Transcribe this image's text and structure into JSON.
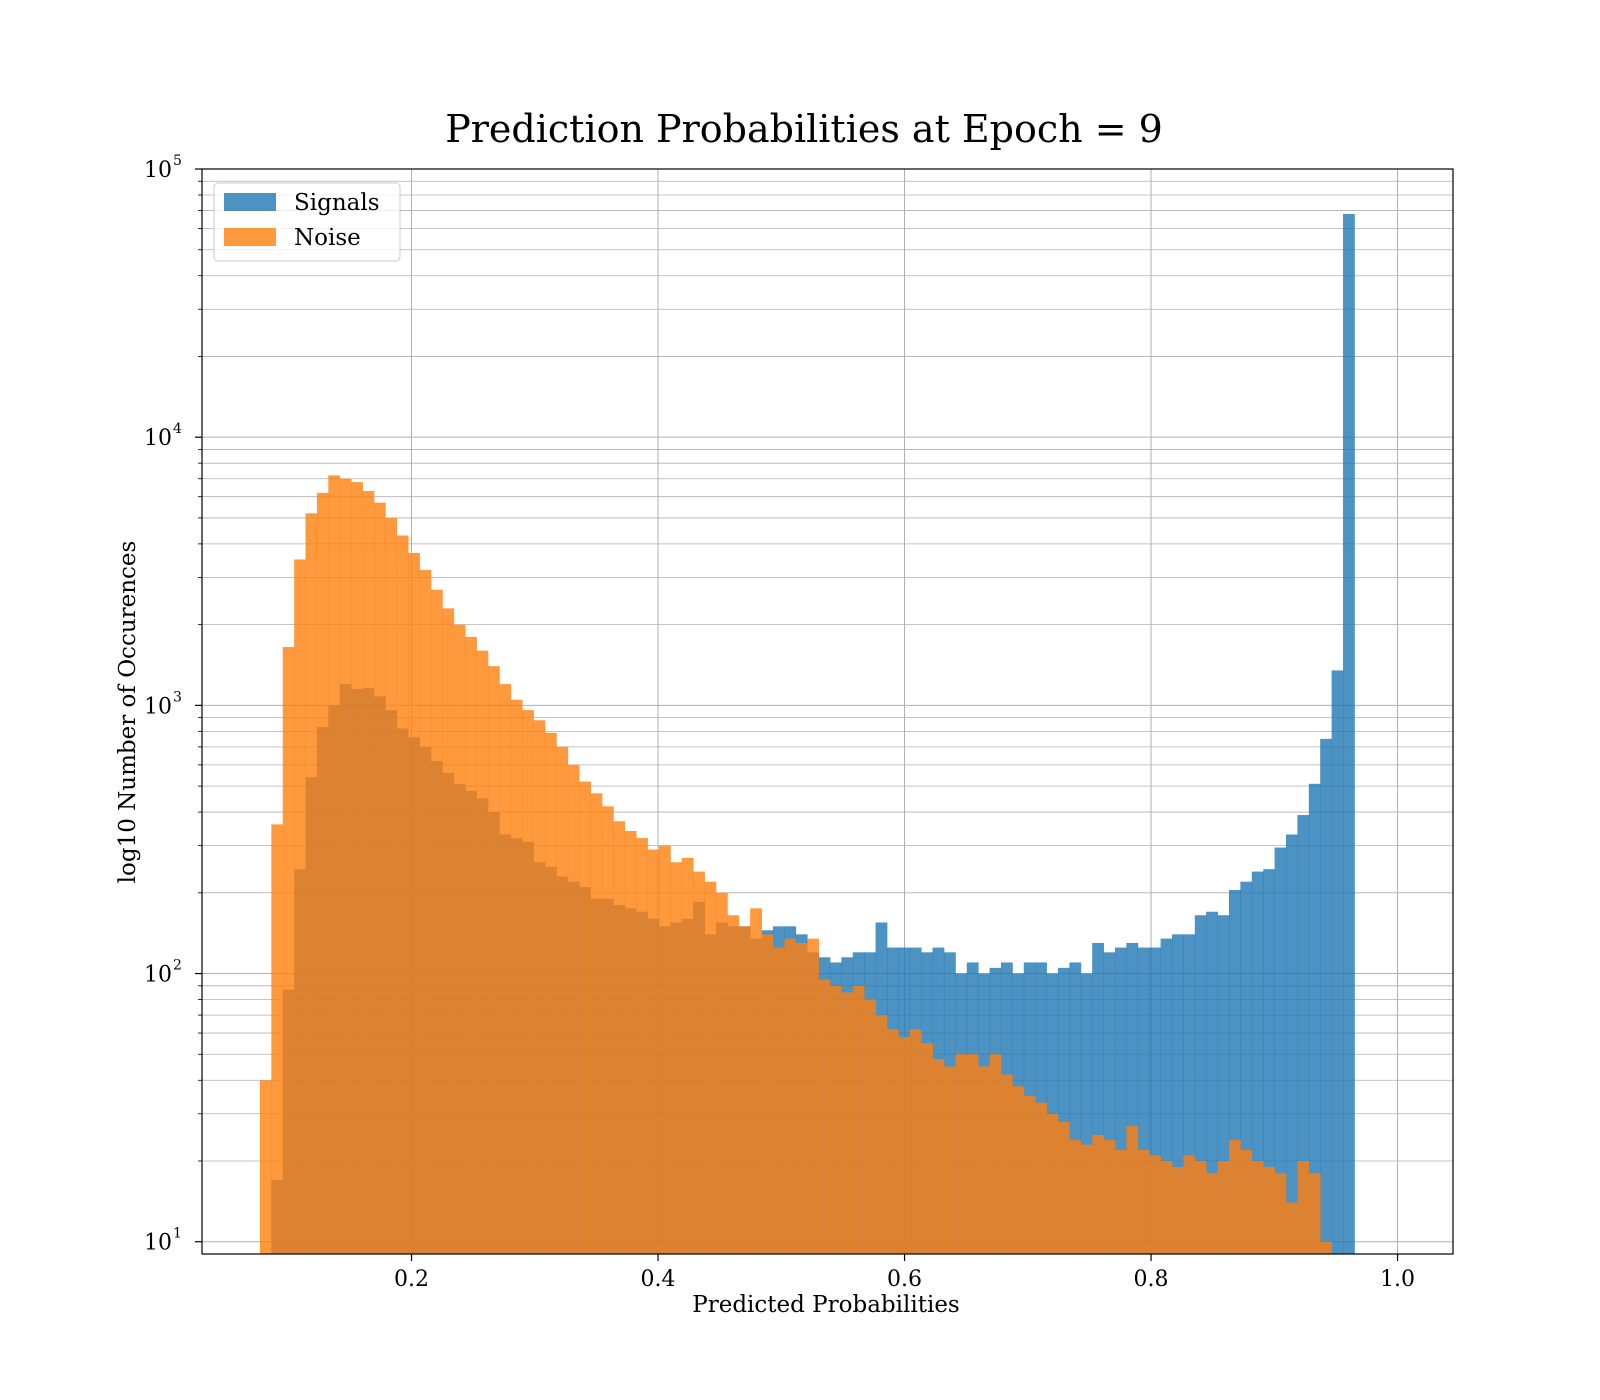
{
  "chart_data": {
    "type": "histogram",
    "title": "Prediction Probabilities at Epoch = 9",
    "xlabel": "Predicted Probabilities",
    "ylabel": "log10 Number of Occurences",
    "xlim": [
      0.03,
      1.045
    ],
    "ylim": [
      9,
      100000
    ],
    "yscale": "log",
    "grid": true,
    "legend_placement": "top-left",
    "bin_start": 0.077,
    "bin_width": 0.00925,
    "xticks": [
      {
        "value": 0.2,
        "label": "0.2"
      },
      {
        "value": 0.4,
        "label": "0.4"
      },
      {
        "value": 0.6,
        "label": "0.6"
      },
      {
        "value": 0.8,
        "label": "0.8"
      },
      {
        "value": 1.0,
        "label": "1.0"
      }
    ],
    "yticks": [
      {
        "value": 10,
        "base": "10",
        "exp": "1"
      },
      {
        "value": 100,
        "base": "10",
        "exp": "2"
      },
      {
        "value": 1000,
        "base": "10",
        "exp": "3"
      },
      {
        "value": 10000,
        "base": "10",
        "exp": "4"
      },
      {
        "value": 100000,
        "base": "10",
        "exp": "5"
      }
    ],
    "series": [
      {
        "name": "Signals",
        "color": "#1f77b4",
        "opacity": 0.8,
        "values": [
          0,
          17,
          87,
          245,
          540,
          830,
          1000,
          1200,
          1150,
          1160,
          1080,
          960,
          820,
          760,
          700,
          620,
          560,
          510,
          480,
          450,
          400,
          330,
          320,
          310,
          260,
          250,
          230,
          220,
          210,
          190,
          190,
          180,
          175,
          170,
          160,
          150,
          155,
          160,
          185,
          140,
          155,
          150,
          150,
          135,
          145,
          150,
          150,
          140,
          120,
          115,
          110,
          115,
          120,
          120,
          155,
          125,
          125,
          125,
          120,
          125,
          120,
          100,
          110,
          100,
          105,
          110,
          100,
          110,
          110,
          100,
          105,
          110,
          100,
          130,
          120,
          125,
          130,
          125,
          125,
          135,
          140,
          140,
          165,
          170,
          165,
          205,
          220,
          240,
          245,
          295,
          330,
          390,
          510,
          750,
          1350,
          68000
        ]
      },
      {
        "name": "Noise",
        "color": "#ff7f0e",
        "opacity": 0.8,
        "values": [
          40,
          360,
          1650,
          3500,
          5200,
          6200,
          7200,
          7000,
          6800,
          6300,
          5700,
          5000,
          4300,
          3700,
          3200,
          2700,
          2300,
          2000,
          1800,
          1600,
          1400,
          1200,
          1050,
          960,
          880,
          790,
          700,
          600,
          520,
          470,
          420,
          370,
          340,
          320,
          290,
          300,
          260,
          270,
          240,
          220,
          200,
          165,
          150,
          175,
          140,
          125,
          135,
          130,
          135,
          95,
          90,
          85,
          90,
          80,
          70,
          62,
          58,
          62,
          55,
          48,
          45,
          50,
          50,
          45,
          50,
          42,
          38,
          35,
          33,
          30,
          28,
          24,
          23,
          25,
          24,
          22,
          27,
          22,
          21,
          20,
          19,
          21,
          20,
          18,
          20,
          24,
          22,
          20,
          19,
          18,
          14,
          20,
          18,
          10
        ]
      }
    ]
  }
}
